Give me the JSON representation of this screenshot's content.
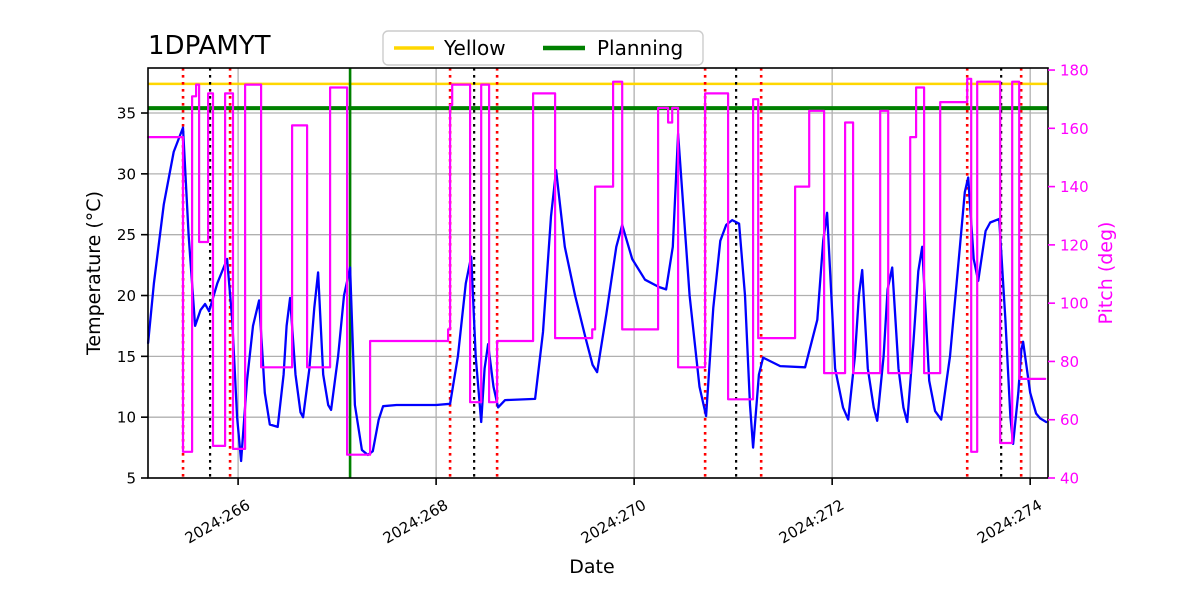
{
  "title": "1DPAMYT",
  "legend": {
    "items": [
      {
        "label": "Yellow",
        "color": "#ffd700"
      },
      {
        "label": "Planning",
        "color": "#008000"
      }
    ]
  },
  "chart_data": {
    "type": "line",
    "title": "1DPAMYT",
    "x_axis": {
      "label": "Date",
      "range": [
        265.09,
        274.18
      ],
      "ticks": [
        {
          "v": 266,
          "label": "2024:266"
        },
        {
          "v": 268,
          "label": "2024:268"
        },
        {
          "v": 270,
          "label": "2024:270"
        },
        {
          "v": 272,
          "label": "2024:272"
        },
        {
          "v": 274,
          "label": "2024:274"
        }
      ]
    },
    "left_axis": {
      "label": "Temperature (°C)",
      "color": "#000000",
      "range": [
        5,
        38.7
      ],
      "ticks": [
        5,
        10,
        15,
        20,
        25,
        30,
        35
      ]
    },
    "right_axis": {
      "label": "Pitch (deg)",
      "color": "#ff00ff",
      "range": [
        40,
        180.7
      ],
      "ticks": [
        40,
        60,
        80,
        100,
        120,
        140,
        160,
        180
      ]
    },
    "grid": {
      "show": true,
      "color": "#b0b0b0"
    },
    "series": [
      {
        "name": "Temperature",
        "axis": "left",
        "style": "line",
        "color": "#0000ff",
        "width": 2.3,
        "points": [
          [
            265.091,
            16.1
          ],
          [
            265.15,
            21
          ],
          [
            265.25,
            27.5
          ],
          [
            265.35,
            31.8
          ],
          [
            265.444,
            33.8
          ],
          [
            265.5,
            25
          ],
          [
            265.566,
            17.5
          ],
          [
            265.62,
            18.8
          ],
          [
            265.667,
            19.3
          ],
          [
            265.707,
            18.7
          ],
          [
            265.79,
            21
          ],
          [
            265.889,
            23
          ],
          [
            265.94,
            18
          ],
          [
            265.99,
            10
          ],
          [
            266.03,
            6.4
          ],
          [
            266.09,
            13
          ],
          [
            266.15,
            17.5
          ],
          [
            266.212,
            19.6
          ],
          [
            266.27,
            12
          ],
          [
            266.32,
            9.4
          ],
          [
            266.4,
            9.2
          ],
          [
            266.46,
            13.5
          ],
          [
            266.49,
            17.5
          ],
          [
            266.525,
            19.8
          ],
          [
            266.58,
            13.5
          ],
          [
            266.63,
            10.4
          ],
          [
            266.657,
            10
          ],
          [
            266.72,
            14
          ],
          [
            266.77,
            19
          ],
          [
            266.808,
            21.9
          ],
          [
            266.86,
            13.5
          ],
          [
            266.91,
            11
          ],
          [
            266.939,
            10.6
          ],
          [
            267.01,
            15
          ],
          [
            267.07,
            20
          ],
          [
            267.131,
            22.3
          ],
          [
            267.18,
            11
          ],
          [
            267.25,
            7.3
          ],
          [
            267.31,
            6.9
          ],
          [
            267.36,
            7.2
          ],
          [
            267.42,
            9.8
          ],
          [
            267.465,
            10.9
          ],
          [
            267.6,
            11
          ],
          [
            268.0,
            11
          ],
          [
            268.141,
            11.1
          ],
          [
            268.22,
            15
          ],
          [
            268.3,
            21
          ],
          [
            268.354,
            23.2
          ],
          [
            268.4,
            15
          ],
          [
            268.455,
            9.6
          ],
          [
            268.49,
            14
          ],
          [
            268.525,
            16
          ],
          [
            268.58,
            12.5
          ],
          [
            268.626,
            10.8
          ],
          [
            268.697,
            11.4
          ],
          [
            269.0,
            11.5
          ],
          [
            269.08,
            17
          ],
          [
            269.16,
            26.5
          ],
          [
            269.212,
            30.3
          ],
          [
            269.3,
            24
          ],
          [
            269.404,
            20
          ],
          [
            269.51,
            16.5
          ],
          [
            269.58,
            14.3
          ],
          [
            269.626,
            13.7
          ],
          [
            269.72,
            18.5
          ],
          [
            269.82,
            24
          ],
          [
            269.879,
            25.8
          ],
          [
            269.98,
            23
          ],
          [
            270.11,
            21.3
          ],
          [
            270.25,
            20.7
          ],
          [
            270.323,
            20.5
          ],
          [
            270.39,
            24
          ],
          [
            270.444,
            33.3
          ],
          [
            270.56,
            20
          ],
          [
            270.66,
            12.5
          ],
          [
            270.727,
            10.1
          ],
          [
            270.8,
            19
          ],
          [
            270.87,
            24.5
          ],
          [
            270.93,
            25.8
          ],
          [
            270.99,
            26.2
          ],
          [
            271.06,
            25.9
          ],
          [
            271.12,
            20
          ],
          [
            271.17,
            11
          ],
          [
            271.202,
            7.5
          ],
          [
            271.26,
            13.5
          ],
          [
            271.303,
            14.9
          ],
          [
            271.475,
            14.2
          ],
          [
            271.727,
            14.1
          ],
          [
            271.85,
            18
          ],
          [
            271.91,
            24.5
          ],
          [
            271.949,
            26.8
          ],
          [
            272.03,
            14
          ],
          [
            272.11,
            10.8
          ],
          [
            272.162,
            9.8
          ],
          [
            272.23,
            15
          ],
          [
            272.27,
            20
          ],
          [
            272.303,
            22.1
          ],
          [
            272.36,
            14
          ],
          [
            272.42,
            10.8
          ],
          [
            272.455,
            9.7
          ],
          [
            272.52,
            15
          ],
          [
            272.56,
            20.5
          ],
          [
            272.606,
            22.3
          ],
          [
            272.67,
            14
          ],
          [
            272.72,
            10.8
          ],
          [
            272.758,
            9.6
          ],
          [
            272.82,
            16
          ],
          [
            272.87,
            22
          ],
          [
            272.909,
            24
          ],
          [
            272.98,
            13
          ],
          [
            273.04,
            10.5
          ],
          [
            273.101,
            9.8
          ],
          [
            273.19,
            15
          ],
          [
            273.29,
            24
          ],
          [
            273.34,
            28.5
          ],
          [
            273.374,
            29.7
          ],
          [
            273.43,
            23
          ],
          [
            273.475,
            21.2
          ],
          [
            273.55,
            25.3
          ],
          [
            273.596,
            26
          ],
          [
            273.687,
            26.3
          ],
          [
            273.75,
            18
          ],
          [
            273.8,
            10
          ],
          [
            273.828,
            7.8
          ],
          [
            273.88,
            12
          ],
          [
            273.91,
            15.5
          ],
          [
            273.929,
            16.2
          ],
          [
            274.0,
            12
          ],
          [
            274.06,
            10.3
          ],
          [
            274.101,
            9.9
          ],
          [
            274.162,
            9.6
          ]
        ]
      },
      {
        "name": "Pitch",
        "axis": "right",
        "style": "step",
        "color": "#ff00ff",
        "width": 2.2,
        "points": [
          [
            265.091,
            157
          ],
          [
            265.444,
            49
          ],
          [
            265.535,
            171
          ],
          [
            265.576,
            175
          ],
          [
            265.606,
            121
          ],
          [
            265.697,
            172
          ],
          [
            265.747,
            51
          ],
          [
            265.869,
            172
          ],
          [
            265.949,
            50
          ],
          [
            266.071,
            175
          ],
          [
            266.232,
            78
          ],
          [
            266.545,
            161
          ],
          [
            266.697,
            78
          ],
          [
            266.929,
            174
          ],
          [
            267.101,
            48
          ],
          [
            267.333,
            87
          ],
          [
            268.121,
            91
          ],
          [
            268.141,
            168
          ],
          [
            268.162,
            175
          ],
          [
            268.343,
            66
          ],
          [
            268.455,
            175
          ],
          [
            268.535,
            66
          ],
          [
            268.616,
            87
          ],
          [
            268.98,
            172
          ],
          [
            269.202,
            88
          ],
          [
            269.576,
            91
          ],
          [
            269.606,
            140
          ],
          [
            269.788,
            176
          ],
          [
            269.879,
            91
          ],
          [
            270.242,
            167
          ],
          [
            270.343,
            162
          ],
          [
            270.384,
            167
          ],
          [
            270.444,
            78
          ],
          [
            270.717,
            172
          ],
          [
            270.949,
            67
          ],
          [
            271.202,
            170
          ],
          [
            271.253,
            88
          ],
          [
            271.626,
            140
          ],
          [
            271.768,
            166
          ],
          [
            271.919,
            76
          ],
          [
            272.131,
            162
          ],
          [
            272.212,
            76
          ],
          [
            272.485,
            166
          ],
          [
            272.566,
            76
          ],
          [
            272.788,
            157
          ],
          [
            272.848,
            174
          ],
          [
            272.929,
            76
          ],
          [
            273.091,
            169
          ],
          [
            273.364,
            177
          ],
          [
            273.404,
            49
          ],
          [
            273.465,
            176
          ],
          [
            273.697,
            52
          ],
          [
            273.818,
            176
          ],
          [
            273.889,
            74
          ],
          [
            274.152,
            74
          ]
        ]
      }
    ],
    "reference_lines": {
      "horizontal": [
        {
          "name": "Yellow",
          "axis": "left",
          "value": 37.4,
          "color": "#ffd700",
          "width": 2.5,
          "style": "solid"
        },
        {
          "name": "Planning",
          "axis": "left",
          "value": 35.4,
          "color": "#008000",
          "width": 4,
          "style": "solid"
        }
      ],
      "vertical": [
        {
          "x": 265.444,
          "color": "#ff0000",
          "style": "dotted",
          "width": 2.6
        },
        {
          "x": 265.919,
          "color": "#ff0000",
          "style": "dotted",
          "width": 2.6
        },
        {
          "x": 268.141,
          "color": "#ff0000",
          "style": "dotted",
          "width": 2.6
        },
        {
          "x": 268.616,
          "color": "#ff0000",
          "style": "dotted",
          "width": 2.6
        },
        {
          "x": 270.717,
          "color": "#ff0000",
          "style": "dotted",
          "width": 2.6
        },
        {
          "x": 271.283,
          "color": "#ff0000",
          "style": "dotted",
          "width": 2.6
        },
        {
          "x": 273.364,
          "color": "#ff0000",
          "style": "dotted",
          "width": 2.6
        },
        {
          "x": 273.909,
          "color": "#ff0000",
          "style": "dotted",
          "width": 2.6
        },
        {
          "x": 265.717,
          "color": "#000000",
          "style": "dotted",
          "width": 2.2
        },
        {
          "x": 268.384,
          "color": "#000000",
          "style": "dotted",
          "width": 2.2
        },
        {
          "x": 271.03,
          "color": "#000000",
          "style": "dotted",
          "width": 2.2
        },
        {
          "x": 273.707,
          "color": "#000000",
          "style": "dotted",
          "width": 2.2
        },
        {
          "x": 267.131,
          "color": "#008000",
          "style": "solid",
          "width": 2.6
        }
      ]
    }
  }
}
